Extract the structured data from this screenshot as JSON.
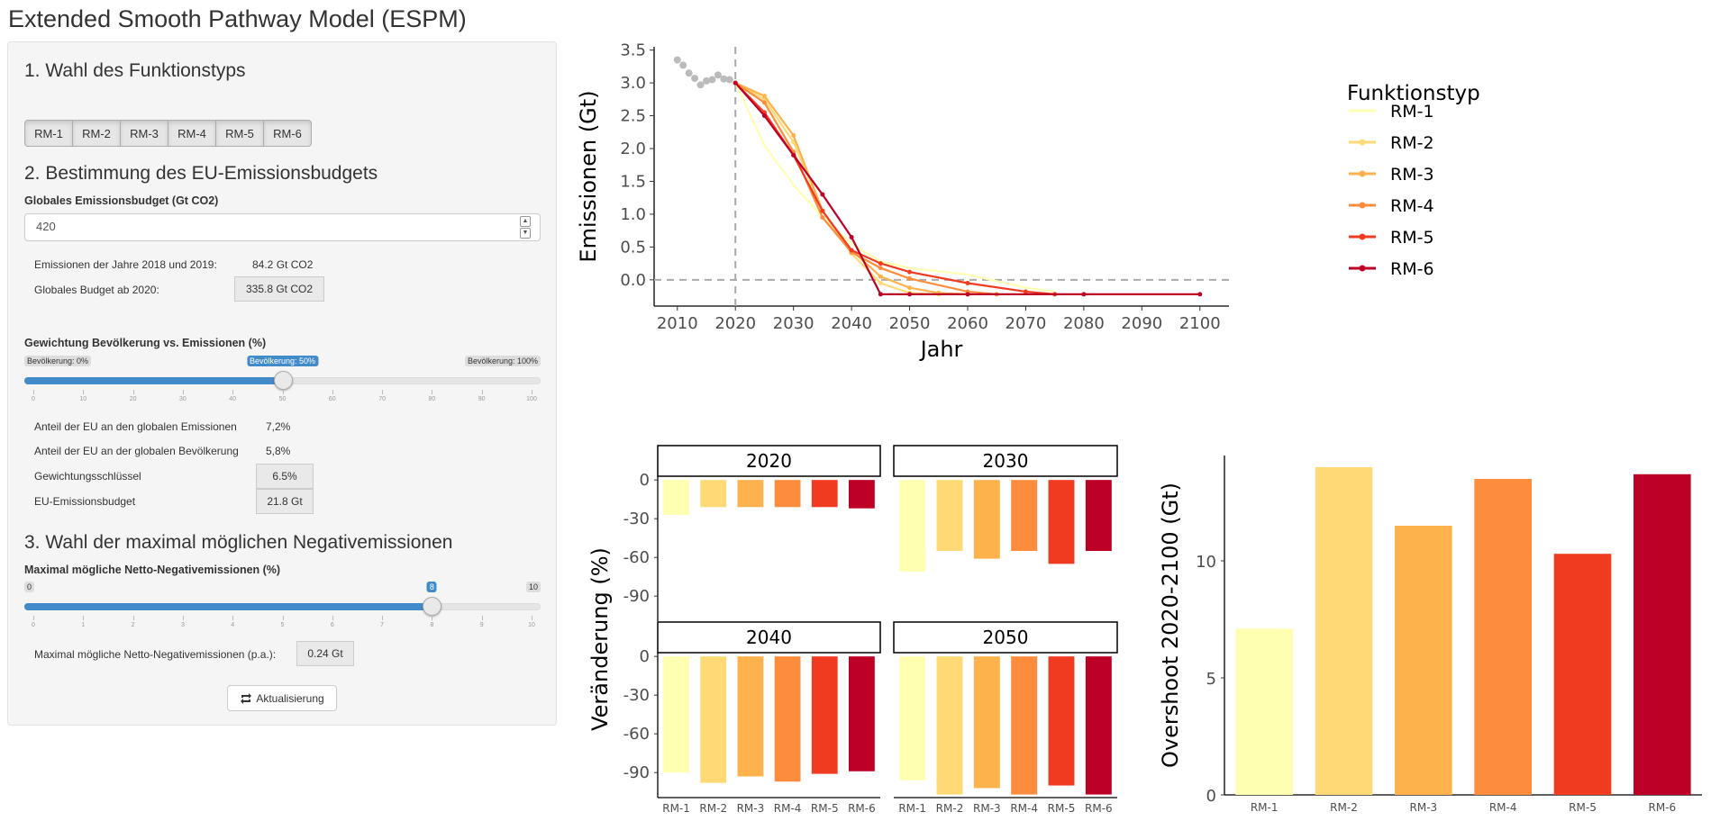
{
  "app": {
    "title": "Extended Smooth Pathway Model (ESPM)"
  },
  "sidebar": {
    "section1": {
      "title": "1. Wahl des Funktionstyps",
      "buttons": [
        "RM-1",
        "RM-2",
        "RM-3",
        "RM-4",
        "RM-5",
        "RM-6"
      ]
    },
    "section2": {
      "title": "2. Bestimmung des EU-Emissionsbudgets",
      "budget_label": "Globales Emissionsbudget (Gt CO2)",
      "budget_value": "420",
      "em_label": "Emissionen der Jahre 2018 und 2019:",
      "em_value": "84.2 Gt CO2",
      "gb_label": "Globales Budget ab 2020:",
      "gb_value": "335.8 Gt CO2",
      "weight_label": "Gewichtung Bevölkerung vs. Emissionen (%)",
      "weight_min": "Bevölkerung: 0%",
      "weight_cur": "Bevölkerung: 50%",
      "weight_max": "Bevölkerung: 100%",
      "weight_value": 50,
      "weight_ticks": [
        "0",
        "10",
        "20",
        "30",
        "40",
        "50",
        "60",
        "70",
        "80",
        "90",
        "100"
      ],
      "eu_em_label": "Anteil der EU an den globalen Emissionen",
      "eu_em_value": "7,2%",
      "eu_pop_label": "Anteil der EU an der globalen Bevölkerung",
      "eu_pop_value": "5,8%",
      "key_label": "Gewichtungsschlüssel",
      "key_value": "6.5%",
      "eubudget_label": "EU-Emissionsbudget",
      "eubudget_value": "21.8 Gt"
    },
    "section3": {
      "title": "3. Wahl der maximal möglichen Negativemissionen",
      "neg_label": "Maximal mögliche Netto-Negativemissionen (%)",
      "neg_min": "0",
      "neg_cur": "8",
      "neg_max": "10",
      "neg_value": 8,
      "neg_ticks": [
        "0",
        "1",
        "2",
        "3",
        "4",
        "5",
        "6",
        "7",
        "8",
        "9",
        "10"
      ],
      "pa_label": "Maximal mögliche Netto-Negativemissionen (p.a.):",
      "pa_value": "0.24 Gt",
      "update_label": "Aktualisierung"
    }
  },
  "chart_data": [
    {
      "type": "line",
      "xlabel": "Jahr",
      "ylabel": "Emissionen (Gt)",
      "xlim": [
        2006,
        2105
      ],
      "ylim": [
        -0.4,
        3.55
      ],
      "xticks": [
        2010,
        2020,
        2030,
        2040,
        2050,
        2060,
        2070,
        2080,
        2090,
        2100
      ],
      "yticks": [
        "0.0",
        "0.5",
        "1.0",
        "1.5",
        "2.0",
        "2.5",
        "3.0",
        "3.5"
      ],
      "legend_title": "Funktionstyp",
      "legend_position": "right",
      "reference_lines": {
        "x": 2020,
        "y": 0
      },
      "historical": {
        "x": [
          2010,
          2011,
          2012,
          2013,
          2014,
          2015,
          2016,
          2017,
          2018,
          2019
        ],
        "y": [
          3.35,
          3.27,
          3.15,
          3.07,
          2.97,
          3.03,
          3.05,
          3.12,
          3.06,
          3.05
        ]
      },
      "series": [
        {
          "name": "RM-1",
          "color": "#ffffb2",
          "x": [
            2020,
            2025,
            2030,
            2035,
            2040,
            2045,
            2050,
            2060,
            2070,
            2075
          ],
          "y": [
            3.0,
            2.05,
            1.45,
            0.95,
            0.55,
            0.28,
            0.18,
            0.08,
            -0.12,
            -0.18
          ]
        },
        {
          "name": "RM-2",
          "color": "#fed976",
          "x": [
            2020,
            2025,
            2030,
            2035,
            2040,
            2045,
            2050,
            2055
          ],
          "y": [
            3.0,
            2.75,
            2.1,
            1.05,
            0.4,
            -0.05,
            -0.2,
            -0.22
          ]
        },
        {
          "name": "RM-3",
          "color": "#feb24c",
          "x": [
            2020,
            2025,
            2030,
            2035,
            2040,
            2045,
            2050,
            2055,
            2060
          ],
          "y": [
            3.0,
            2.8,
            2.2,
            1.05,
            0.45,
            0.05,
            -0.12,
            -0.2,
            -0.22
          ]
        },
        {
          "name": "RM-4",
          "color": "#fd8d3c",
          "x": [
            2020,
            2025,
            2030,
            2035,
            2040,
            2045,
            2050,
            2060,
            2065
          ],
          "y": [
            3.0,
            2.7,
            1.95,
            0.95,
            0.42,
            0.18,
            0.02,
            -0.18,
            -0.22
          ]
        },
        {
          "name": "RM-5",
          "color": "#f03b20",
          "x": [
            2020,
            2025,
            2030,
            2035,
            2040,
            2045,
            2050,
            2060,
            2070,
            2075
          ],
          "y": [
            3.0,
            2.55,
            1.9,
            1.05,
            0.45,
            0.25,
            0.12,
            -0.05,
            -0.18,
            -0.22
          ]
        },
        {
          "name": "RM-6",
          "color": "#bd0026",
          "x": [
            2020,
            2025,
            2030,
            2035,
            2040,
            2045,
            2050,
            2060,
            2080,
            2100
          ],
          "y": [
            3.0,
            2.5,
            1.9,
            1.3,
            0.65,
            -0.22,
            -0.22,
            -0.22,
            -0.22,
            -0.22
          ]
        }
      ]
    },
    {
      "type": "bar",
      "ylabel": "Veränderung (%)",
      "facets": [
        "2020",
        "2030",
        "2040",
        "2050"
      ],
      "categories": [
        "RM-1",
        "RM-2",
        "RM-3",
        "RM-4",
        "RM-5",
        "RM-6"
      ],
      "colors": [
        "#ffffb2",
        "#fed976",
        "#feb24c",
        "#fd8d3c",
        "#f03b20",
        "#bd0026"
      ],
      "yticks": [
        "0",
        "-30",
        "-60",
        "-90"
      ],
      "ylim": [
        -108,
        5
      ],
      "values": {
        "2020": [
          -27,
          -21,
          -21,
          -21,
          -21,
          -22
        ],
        "2030": [
          -71,
          -55,
          -61,
          -55,
          -65,
          -55
        ],
        "2040": [
          -90,
          -98,
          -93,
          -97,
          -91,
          -89
        ],
        "2050": [
          -96,
          -107,
          -102,
          -107,
          -100,
          -107
        ]
      }
    },
    {
      "type": "bar",
      "ylabel": "Overshoot 2020-2100 (Gt)",
      "categories": [
        "RM-1",
        "RM-2",
        "RM-3",
        "RM-4",
        "RM-5",
        "RM-6"
      ],
      "colors": [
        "#ffffb2",
        "#fed976",
        "#feb24c",
        "#fd8d3c",
        "#f03b20",
        "#bd0026"
      ],
      "values": [
        7.1,
        14.0,
        11.5,
        13.5,
        10.3,
        13.7
      ],
      "yticks": [
        "0",
        "5",
        "10"
      ],
      "ylim": [
        0,
        14.5
      ]
    }
  ]
}
